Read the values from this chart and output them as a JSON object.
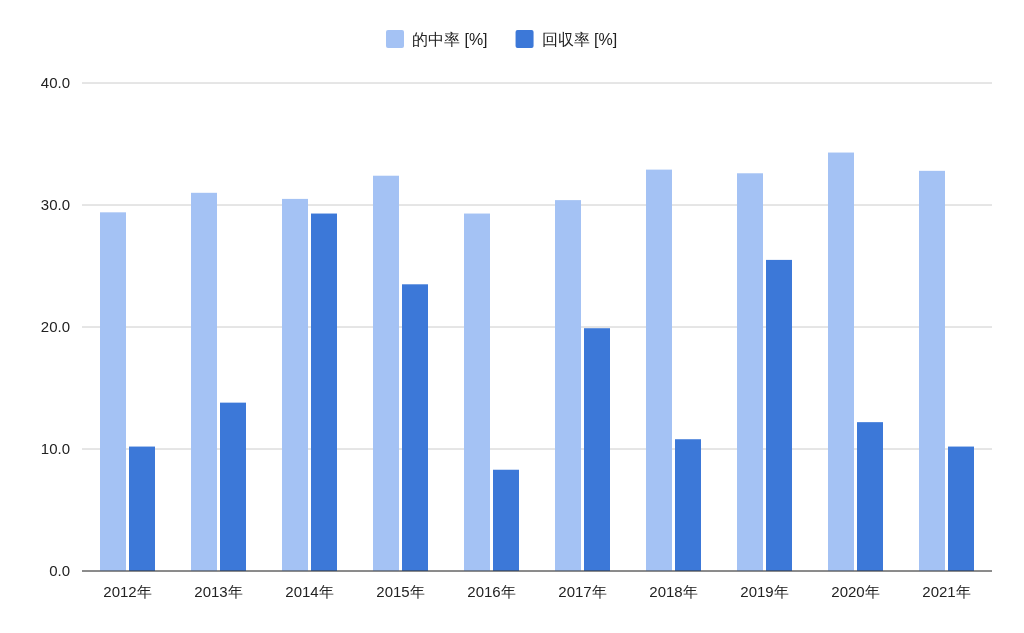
{
  "chart_data": {
    "type": "bar",
    "categories": [
      "2012年",
      "2013年",
      "2014年",
      "2015年",
      "2016年",
      "2017年",
      "2018年",
      "2019年",
      "2020年",
      "2021年"
    ],
    "series": [
      {
        "name": "的中率 [%]",
        "color": "#a4c2f4",
        "values": [
          29.4,
          31.0,
          30.5,
          32.4,
          29.3,
          30.4,
          32.9,
          32.6,
          34.3,
          32.8
        ]
      },
      {
        "name": "回収率 [%]",
        "color": "#3c78d8",
        "values": [
          10.2,
          13.8,
          29.3,
          23.5,
          8.3,
          19.9,
          10.8,
          25.5,
          12.2,
          10.2
        ]
      }
    ],
    "ylim": [
      0,
      40
    ],
    "yticks": [
      {
        "value": 0,
        "label": "0.0"
      },
      {
        "value": 10,
        "label": "10.0"
      },
      {
        "value": 20,
        "label": "20.0"
      },
      {
        "value": 30,
        "label": "30.0"
      },
      {
        "value": 40,
        "label": "40.0"
      }
    ],
    "grid": "y",
    "legend": "top"
  }
}
